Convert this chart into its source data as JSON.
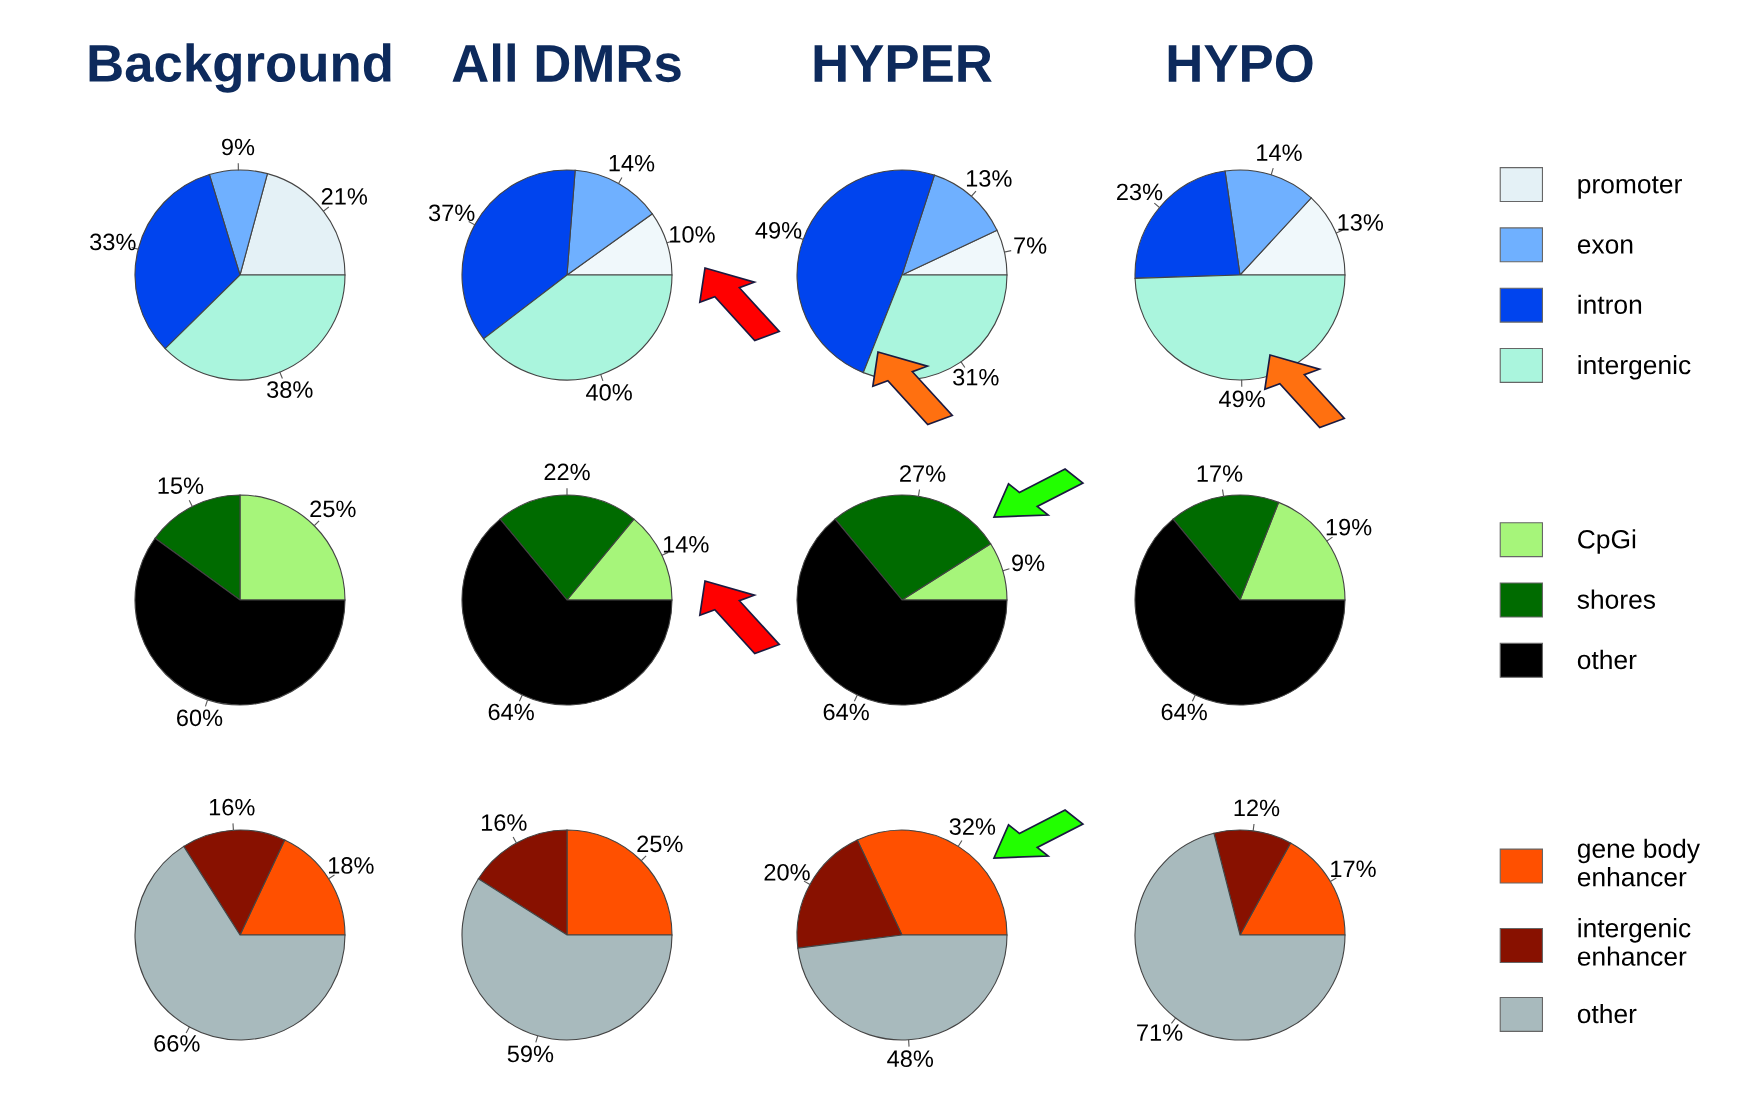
{
  "chart_data": [
    {
      "type": "pie",
      "title": "Background",
      "categories": [
        "promoter",
        "exon",
        "intron",
        "intergenic"
      ],
      "values": [
        21,
        9,
        33,
        38
      ],
      "value_labels": [
        "21%",
        "9%",
        "33%",
        "38%"
      ],
      "colors": [
        "#e4f1f6",
        "#6fb0ff",
        "#0044ee",
        "#aaf5dd"
      ],
      "legend": "right"
    },
    {
      "type": "pie",
      "title": "All DMRs",
      "categories": [
        null,
        null,
        null,
        null
      ],
      "values": [
        10,
        14,
        37,
        40
      ],
      "value_labels": [
        "10%",
        "14%",
        "37%",
        "40%"
      ],
      "colors": [
        "#f0f8fb",
        "#6fb0ff",
        "#0044ee",
        "#aaf5dd"
      ],
      "legend": false
    },
    {
      "type": "pie",
      "title": "HYPER",
      "categories": [
        null,
        null,
        null,
        null
      ],
      "values": [
        7,
        13,
        49,
        31
      ],
      "value_labels": [
        "7%",
        "13%",
        "49%",
        "31%"
      ],
      "colors": [
        "#f0f8fb",
        "#6fb0ff",
        "#0044ee",
        "#aaf5dd"
      ],
      "legend": false
    },
    {
      "type": "pie",
      "title": "HYPO",
      "categories": [
        null,
        null,
        null,
        null
      ],
      "values": [
        13,
        14,
        23,
        49
      ],
      "value_labels": [
        "13%",
        "14%",
        "23%",
        "49%"
      ],
      "colors": [
        "#f0f8fb",
        "#6fb0ff",
        "#0044ee",
        "#aaf5dd"
      ],
      "legend": false
    },
    {
      "type": "pie",
      "categories": [
        "CpGi",
        "shores",
        "other"
      ],
      "values": [
        25,
        15,
        60
      ],
      "value_labels": [
        "25%",
        "15%",
        "60%"
      ],
      "colors": [
        "#a6f57a",
        "#006b00",
        "#000000"
      ],
      "legend": "right"
    },
    {
      "type": "pie",
      "categories": [
        null,
        null,
        null
      ],
      "values": [
        14,
        22,
        64
      ],
      "value_labels": [
        "14%",
        "22%",
        "64%"
      ],
      "colors": [
        "#a6f57a",
        "#006b00",
        "#000000"
      ],
      "legend": false
    },
    {
      "type": "pie",
      "categories": [
        null,
        null,
        null
      ],
      "values": [
        9,
        27,
        64
      ],
      "value_labels": [
        "9%",
        "27%",
        "64%"
      ],
      "colors": [
        "#a6f57a",
        "#006b00",
        "#000000"
      ],
      "legend": false
    },
    {
      "type": "pie",
      "categories": [
        null,
        null,
        null
      ],
      "values": [
        19,
        17,
        64
      ],
      "value_labels": [
        "19%",
        "17%",
        "64%"
      ],
      "colors": [
        "#a6f57a",
        "#006b00",
        "#000000"
      ],
      "legend": false
    },
    {
      "type": "pie",
      "categories": [
        "gene body\nenhancer",
        "intergenic\nenhancer",
        "other"
      ],
      "values": [
        18,
        16,
        66
      ],
      "value_labels": [
        "18%",
        "16%",
        "66%"
      ],
      "colors": [
        "#ff5000",
        "#881100",
        "#a8babd"
      ],
      "legend": "right"
    },
    {
      "type": "pie",
      "categories": [
        null,
        null,
        null
      ],
      "values": [
        25,
        16,
        59
      ],
      "value_labels": [
        "25%",
        "16%",
        "59%"
      ],
      "colors": [
        "#ff5000",
        "#881100",
        "#a8babd"
      ],
      "legend": false
    },
    {
      "type": "pie",
      "categories": [
        null,
        null,
        null
      ],
      "values": [
        32,
        20,
        48
      ],
      "value_labels": [
        "32%",
        "20%",
        "48%"
      ],
      "colors": [
        "#ff5000",
        "#881100",
        "#a8babd"
      ],
      "legend": false
    },
    {
      "type": "pie",
      "categories": [
        null,
        null,
        null
      ],
      "values": [
        17,
        12,
        71
      ],
      "value_labels": [
        "17%",
        "12%",
        "71%"
      ],
      "colors": [
        "#ff5000",
        "#881100",
        "#a8babd"
      ],
      "legend": false
    }
  ]
}
